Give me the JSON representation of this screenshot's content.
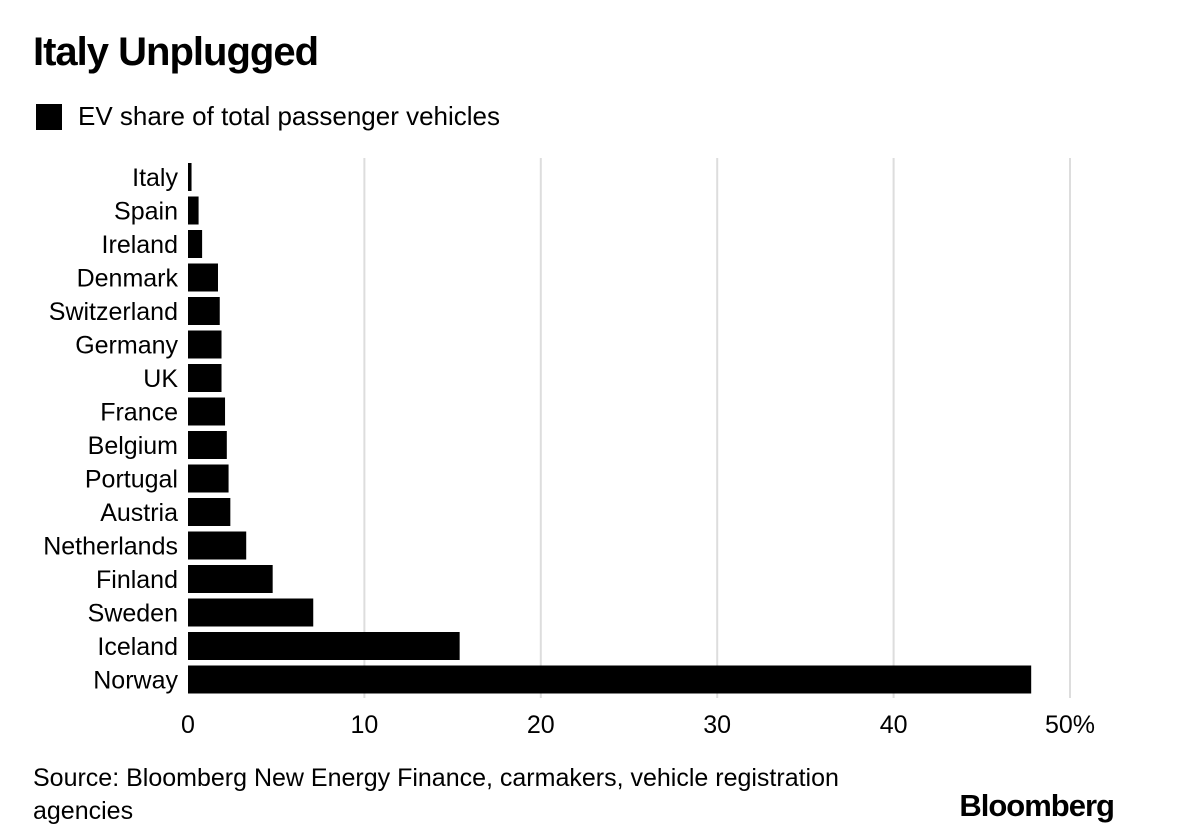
{
  "title": "Italy Unplugged",
  "legend": {
    "label": "EV share of total passenger vehicles",
    "color": "#000000"
  },
  "source": "Source: Bloomberg New Energy Finance, carmakers, vehicle registration agencies",
  "brand": "Bloomberg",
  "chart_data": {
    "type": "bar",
    "orientation": "horizontal",
    "categories": [
      "Italy",
      "Spain",
      "Ireland",
      "Denmark",
      "Switzerland",
      "Germany",
      "UK",
      "France",
      "Belgium",
      "Portugal",
      "Austria",
      "Netherlands",
      "Finland",
      "Sweden",
      "Iceland",
      "Norway"
    ],
    "series": [
      {
        "name": "EV share of total passenger vehicles",
        "values": [
          0.2,
          0.6,
          0.8,
          1.7,
          1.8,
          1.9,
          1.9,
          2.1,
          2.2,
          2.3,
          2.4,
          3.3,
          4.8,
          7.1,
          15.4,
          47.8
        ]
      }
    ],
    "xlim": [
      0,
      50
    ],
    "xticks": [
      0,
      10,
      20,
      30,
      40,
      50
    ],
    "xtick_labels": [
      "0",
      "10",
      "20",
      "30",
      "40",
      "50%"
    ],
    "grid": true,
    "legend_position": "top-left",
    "bar_color": "#000000",
    "grid_color": "#dddddd"
  }
}
